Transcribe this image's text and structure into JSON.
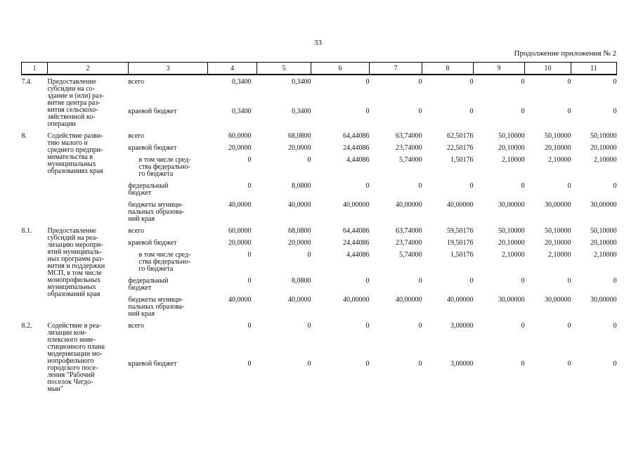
{
  "page": {
    "number": "33",
    "continuation_note": "Продолжение приложения № 2"
  },
  "table": {
    "column_numbers": [
      "1",
      "2",
      "3",
      "4",
      "5",
      "6",
      "7",
      "8",
      "9",
      "10",
      "11"
    ],
    "items": [
      {
        "num": "7.4.",
        "name": "Предоставление\nсубсидии на со-\nздание и (или) раз-\nвитие центра раз-\nвития сельскохо-\nзяйственной ко-\nоперации",
        "rows": [
          {
            "label": "всего",
            "indent": false,
            "values": [
              "0,3400",
              "0,3400",
              "0",
              "0",
              "0",
              "0",
              "0",
              "0"
            ]
          },
          {
            "label": "краевой бюджет",
            "indent": false,
            "values": [
              "0,3400",
              "0,3400",
              "0",
              "0",
              "0",
              "0",
              "0",
              "0"
            ]
          }
        ]
      },
      {
        "num": "8.",
        "name": "Содействие разви-\nтию малого и\nсреднего предпри-\nнимательства в\nмуниципальных\nобразованиях края",
        "rows": [
          {
            "label": "всего",
            "indent": false,
            "values": [
              "60,0000",
              "68,0800",
              "64,44086",
              "63,74000",
              "62,50176",
              "50,10000",
              "50,10000",
              "50,10000"
            ]
          },
          {
            "label": "краевой бюджет",
            "indent": false,
            "values": [
              "20,0000",
              "20,0000",
              "24,44086",
              "23,74000",
              "22,50176",
              "20,10000",
              "20,10000",
              "20,10000"
            ]
          },
          {
            "label": "в том числе сред-\nства федерально-\nго бюджета",
            "indent": true,
            "values": [
              "0",
              "0",
              "4,44086",
              "5,74000",
              "1,50176",
              "2,10000",
              "2,10000",
              "2,10000"
            ]
          },
          {
            "label": "федеральный\nбюджет",
            "indent": false,
            "values": [
              "0",
              "8,0800",
              "0",
              "0",
              "0",
              "0",
              "0",
              "0"
            ]
          },
          {
            "label": "бюджеты муници-\nпальных образова-\nний края",
            "indent": false,
            "values": [
              "40,0000",
              "40,0000",
              "40,00000",
              "40,00000",
              "40,00000",
              "30,00000",
              "30,00000",
              "30,00000"
            ]
          }
        ]
      },
      {
        "num": "8.1.",
        "name": "Предоставление\nсубсидий на реа-\nлизацию меропри-\nятий муниципаль-\nных программ раз-\nвития и поддержки\nМСП, в том числе\nмонопрофильных\nмуниципальных\nобразований края",
        "rows": [
          {
            "label": "всего",
            "indent": false,
            "values": [
              "60,0000",
              "68,0800",
              "64,44086",
              "63,74000",
              "59,50176",
              "50,10000",
              "50,10000",
              "50,10000"
            ]
          },
          {
            "label": "краевой бюджет",
            "indent": false,
            "values": [
              "20,0000",
              "20,0000",
              "24,44086",
              "23,74000",
              "19,50176",
              "20,10000",
              "20,10000",
              "20,10000"
            ]
          },
          {
            "label": "в том числе сред-\nства федерально-\nго бюджета",
            "indent": true,
            "values": [
              "0",
              "0",
              "4,44086",
              "5,74000",
              "1,50176",
              "2,10000",
              "2,10000",
              "2,10000"
            ]
          },
          {
            "label": "федеральный\nбюджет",
            "indent": false,
            "values": [
              "0",
              "8,0800",
              "0",
              "0",
              "0",
              "0",
              "0",
              "0"
            ]
          },
          {
            "label": "бюджеты муници-\nпальных образова-\nний края",
            "indent": false,
            "values": [
              "40,0000",
              "40,0000",
              "40,00000",
              "40,00000",
              "40,00000",
              "30,00000",
              "30,00000",
              "30,00000"
            ]
          }
        ]
      },
      {
        "num": "8.2.",
        "name": "Содействие в реа-\nлизации ком-\nплексного инве-\nстиционного плана\nмодернизации мо-\nнопрофильного\nгородского посе-\nления \"Рабочий\nпоселок Чегдо-\nмын\"",
        "rows": [
          {
            "label": "всего",
            "indent": false,
            "values": [
              "0",
              "0",
              "0",
              "0",
              "3,00000",
              "0",
              "0",
              "0"
            ]
          },
          {
            "label": "краевой бюджет",
            "indent": false,
            "values": [
              "0",
              "0",
              "0",
              "0",
              "3,00000",
              "0",
              "0",
              "0"
            ]
          }
        ]
      }
    ]
  }
}
